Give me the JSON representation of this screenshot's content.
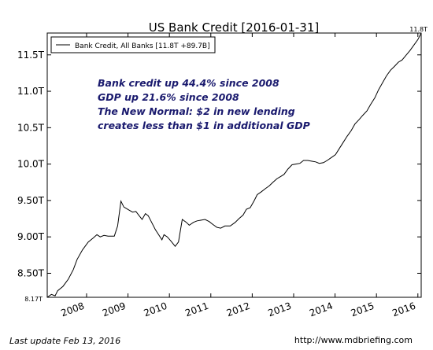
{
  "chart_data": {
    "type": "line",
    "title": "US Bank Credit  [2016-01-31]",
    "series": [
      {
        "name": "Bank Credit, All Banks [11.8T +89.7B]",
        "color": "#000000",
        "x": [
          2007.05,
          2007.15,
          2007.24,
          2007.3,
          2007.43,
          2007.56,
          2007.68,
          2007.77,
          2007.9,
          2008.04,
          2008.15,
          2008.25,
          2008.33,
          2008.42,
          2008.52,
          2008.67,
          2008.75,
          2008.83,
          2008.9,
          2009.02,
          2009.11,
          2009.19,
          2009.27,
          2009.34,
          2009.42,
          2009.49,
          2009.57,
          2009.66,
          2009.74,
          2009.82,
          2009.87,
          2009.95,
          2010.04,
          2010.14,
          2010.22,
          2010.31,
          2010.41,
          2010.48,
          2010.58,
          2010.67,
          2010.77,
          2010.86,
          2010.96,
          2011.05,
          2011.15,
          2011.24,
          2011.34,
          2011.47,
          2011.59,
          2011.68,
          2011.78,
          2011.86,
          2011.95,
          2012.05,
          2012.12,
          2012.22,
          2012.31,
          2012.41,
          2012.5,
          2012.6,
          2012.69,
          2012.77,
          2012.86,
          2012.96,
          2013.05,
          2013.15,
          2013.24,
          2013.34,
          2013.43,
          2013.53,
          2013.62,
          2013.72,
          2013.81,
          2013.91,
          2014.01,
          2014.1,
          2014.2,
          2014.29,
          2014.39,
          2014.48,
          2014.58,
          2014.67,
          2014.77,
          2014.86,
          2014.96,
          2015.05,
          2015.15,
          2015.24,
          2015.34,
          2015.43,
          2015.53,
          2015.62,
          2015.72,
          2015.81,
          2015.91,
          2016.0,
          2016.08
        ],
        "values": [
          8.17,
          8.21,
          8.19,
          8.26,
          8.32,
          8.42,
          8.55,
          8.69,
          8.82,
          8.93,
          8.98,
          9.03,
          9.0,
          9.02,
          9.01,
          9.01,
          9.15,
          9.49,
          9.41,
          9.37,
          9.34,
          9.35,
          9.29,
          9.24,
          9.32,
          9.29,
          9.2,
          9.1,
          9.03,
          8.96,
          9.03,
          9.0,
          8.94,
          8.87,
          8.93,
          9.24,
          9.2,
          9.16,
          9.2,
          9.22,
          9.23,
          9.24,
          9.21,
          9.17,
          9.13,
          9.12,
          9.15,
          9.15,
          9.2,
          9.25,
          9.3,
          9.38,
          9.4,
          9.5,
          9.58,
          9.62,
          9.66,
          9.7,
          9.75,
          9.8,
          9.83,
          9.86,
          9.93,
          9.99,
          10.0,
          10.01,
          10.05,
          10.05,
          10.04,
          10.03,
          10.01,
          10.02,
          10.05,
          10.09,
          10.13,
          10.21,
          10.3,
          10.38,
          10.46,
          10.55,
          10.61,
          10.67,
          10.73,
          10.82,
          10.91,
          11.02,
          11.12,
          11.21,
          11.29,
          11.34,
          11.4,
          11.43,
          11.5,
          11.56,
          11.64,
          11.71,
          11.8
        ]
      }
    ],
    "xlim": [
      2007.05,
      2016.08
    ],
    "xticks": [
      2008,
      2009,
      2010,
      2011,
      2012,
      2013,
      2014,
      2015,
      2016
    ],
    "ylim": [
      8.17,
      11.8
    ],
    "ylim_labels": [
      "8.17T",
      "11.8T"
    ],
    "yticks": [
      {
        "value": 8.5,
        "label": "8.50T"
      },
      {
        "value": 9.0,
        "label": "9.00T"
      },
      {
        "value": 9.5,
        "label": "9.50T"
      },
      {
        "value": 10.0,
        "label": "10.0T"
      },
      {
        "value": 10.5,
        "label": "10.5T"
      },
      {
        "value": 11.0,
        "label": "11.0T"
      },
      {
        "value": 11.5,
        "label": "11.5T"
      }
    ],
    "annotations": [
      "Bank credit up 44.4% since 2008",
      "GDP up 21.6% since 2008",
      "The New Normal: $2 in new lending",
      "creates less than $1 in additional GDP"
    ],
    "annotation_color": "#1a1a6e",
    "legend": "upper left",
    "footer_left": "Last update Feb 13, 2016",
    "footer_right": "http://www.mdbriefing.com"
  }
}
